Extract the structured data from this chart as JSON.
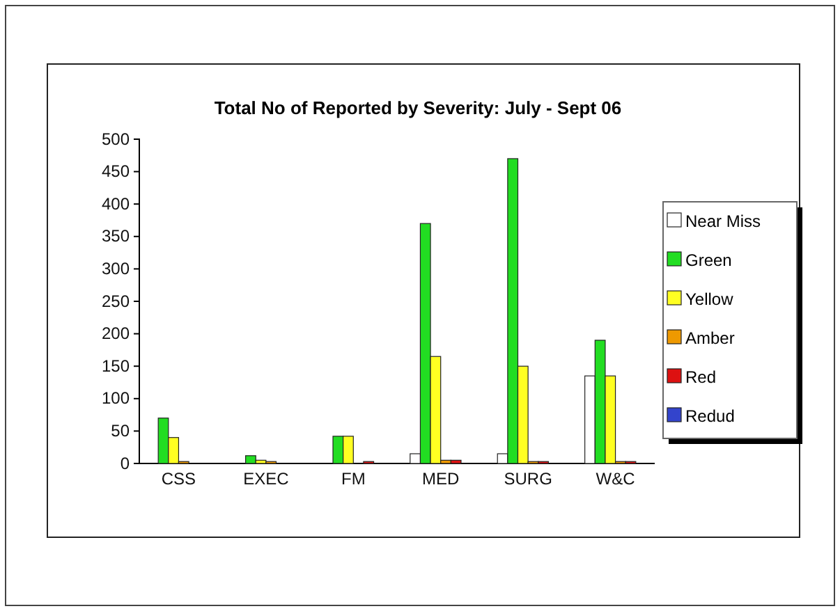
{
  "chart_data": {
    "type": "bar",
    "title": "Total No of Reported by Severity: July - Sept 06",
    "categories": [
      "CSS",
      "EXEC",
      "FM",
      "MED",
      "SURG",
      "W&C"
    ],
    "series": [
      {
        "name": "Near Miss",
        "color": "#ffffff",
        "values": [
          0,
          0,
          0,
          15,
          15,
          135
        ]
      },
      {
        "name": "Green",
        "color": "#22dd22",
        "values": [
          70,
          12,
          42,
          370,
          470,
          190
        ]
      },
      {
        "name": "Yellow",
        "color": "#ffff22",
        "values": [
          40,
          5,
          42,
          165,
          150,
          135
        ]
      },
      {
        "name": "Amber",
        "color": "#ee9900",
        "values": [
          3,
          3,
          0,
          5,
          3,
          3
        ]
      },
      {
        "name": "Red",
        "color": "#dd1111",
        "values": [
          0,
          0,
          3,
          5,
          3,
          3
        ]
      },
      {
        "name": "Redud",
        "color": "#3344cc",
        "values": [
          0,
          0,
          0,
          0,
          0,
          0
        ]
      }
    ],
    "ylim": [
      0,
      500
    ],
    "yticks": [
      0,
      50,
      100,
      150,
      200,
      250,
      300,
      350,
      400,
      450,
      500
    ],
    "grid": false,
    "legend": "right"
  }
}
